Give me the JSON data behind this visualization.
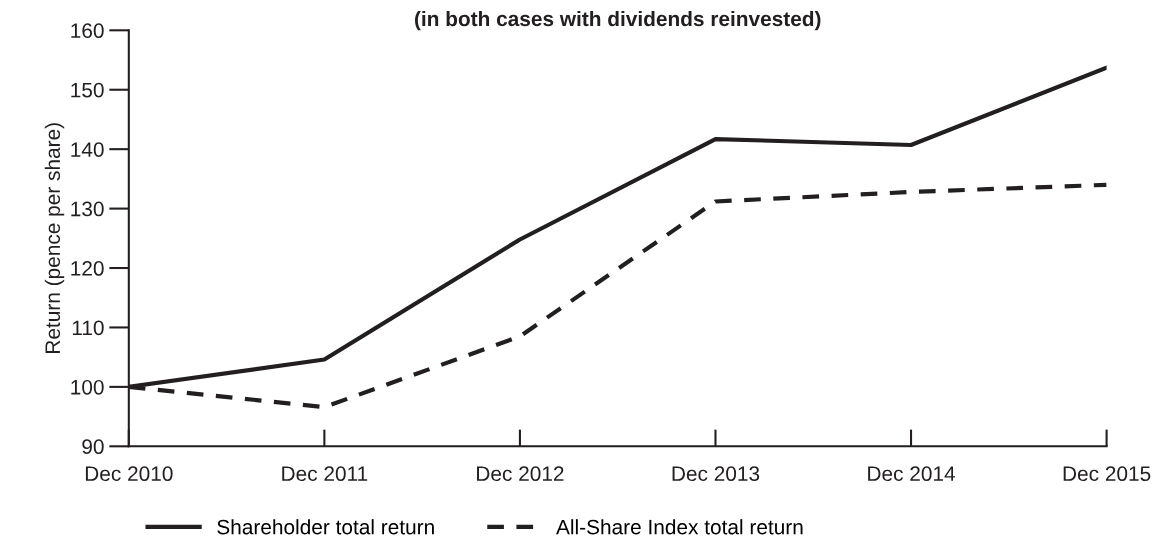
{
  "chart_data": {
    "type": "line",
    "title": "(in both cases with dividends reinvested)",
    "ylabel": "Return (pence per share)",
    "categories": [
      "Dec 2010",
      "Dec 2011",
      "Dec 2012",
      "Dec 2013",
      "Dec 2014",
      "Dec 2015"
    ],
    "series": [
      {
        "name": "Shareholder total return",
        "color": "#231f20",
        "line_style": "solid",
        "values": [
          100,
          104.6,
          124.8,
          141.7,
          140.7,
          153.7
        ]
      },
      {
        "name": "All-Share Index total return",
        "color": "#231f20",
        "line_style": "dashed",
        "values": [
          100,
          96.6,
          108.5,
          131.2,
          132.8,
          134.0
        ]
      }
    ],
    "ylim": [
      90,
      160
    ],
    "yticks": [
      90,
      100,
      110,
      120,
      130,
      140,
      150,
      160
    ],
    "grid": false,
    "legend": "bottom",
    "marker": "none"
  }
}
